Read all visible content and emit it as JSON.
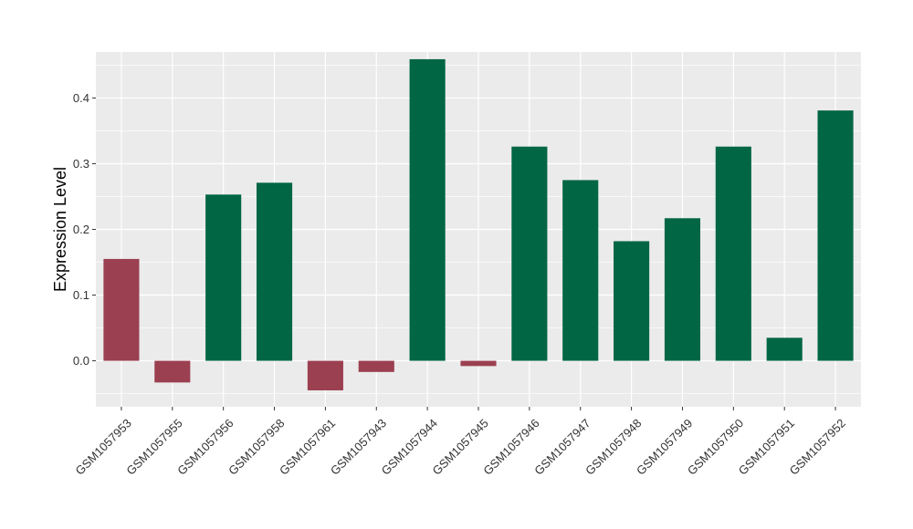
{
  "chart_data": {
    "type": "bar",
    "title": "",
    "xlabel": "",
    "ylabel": "Expression Level",
    "ylim": [
      -0.07,
      0.47
    ],
    "yticks": [
      0.0,
      0.1,
      0.2,
      0.3,
      0.4
    ],
    "ytick_labels": [
      "0.0",
      "0.1",
      "0.2",
      "0.3",
      "0.4"
    ],
    "grid": true,
    "categories": [
      "GSM1057953",
      "GSM1057955",
      "GSM1057956",
      "GSM1057958",
      "GSM1057961",
      "GSM1057943",
      "GSM1057944",
      "GSM1057945",
      "GSM1057946",
      "GSM1057947",
      "GSM1057948",
      "GSM1057949",
      "GSM1057950",
      "GSM1057951",
      "GSM1057952"
    ],
    "values": [
      0.155,
      -0.033,
      0.253,
      0.271,
      -0.045,
      -0.017,
      0.459,
      -0.008,
      0.326,
      0.275,
      0.182,
      0.217,
      0.326,
      0.035,
      0.381
    ],
    "bar_colors": [
      "#9b4050",
      "#9b4050",
      "#006644",
      "#006644",
      "#9b4050",
      "#9b4050",
      "#006644",
      "#9b4050",
      "#006644",
      "#006644",
      "#006644",
      "#006644",
      "#006644",
      "#006644",
      "#006644"
    ],
    "panel_background": "#ebebeb",
    "grid_color": "#ffffff"
  }
}
